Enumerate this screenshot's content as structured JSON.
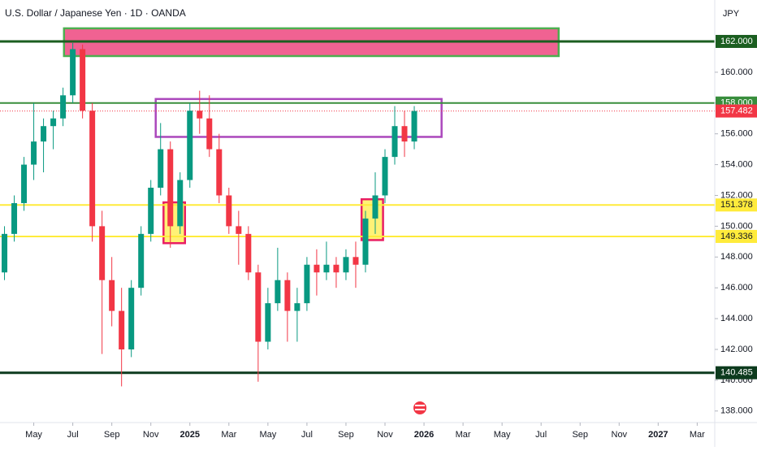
{
  "chart_data": {
    "type": "candlestick",
    "title": "U.S. Dollar / Japanese Yen · 1D · OANDA",
    "axis_label": "JPY",
    "up_color": "#089981",
    "down_color": "#f23645",
    "x": [
      3.5,
      4,
      4.5,
      5,
      5.5,
      6,
      6.5,
      7,
      7.5,
      8,
      8.5,
      9,
      9.5,
      10,
      10.5,
      11,
      11.5,
      12,
      12.5,
      13,
      13.5,
      14,
      14.5,
      15,
      15.5,
      16,
      16.5,
      17,
      17.5,
      18,
      18.5,
      19,
      19.5,
      20,
      20.5,
      21,
      21.5,
      22,
      22.5,
      23,
      23.5,
      24,
      24.5
    ],
    "open": [
      147,
      149.5,
      151.5,
      154,
      155.5,
      156.5,
      157,
      158.5,
      161.5,
      157.5,
      150,
      146.5,
      144.5,
      142,
      146,
      149.5,
      152.5,
      155,
      150,
      153,
      157.5,
      157,
      155,
      152,
      150,
      149.5,
      147,
      142.5,
      145,
      146.5,
      144.5,
      145,
      147.5,
      147,
      147.5,
      147,
      148,
      147.5,
      150.5,
      152,
      154.5,
      156.5,
      155.5
    ],
    "high": [
      150,
      152,
      154.5,
      158,
      157,
      157.5,
      159,
      161.9,
      161.8,
      158,
      151,
      148,
      146,
      146.5,
      150,
      153,
      156.7,
      155.5,
      153.5,
      158,
      158.8,
      158.5,
      156,
      152.5,
      151,
      150,
      147.5,
      146,
      148.6,
      147,
      146,
      148,
      148.5,
      149,
      148,
      148.5,
      149,
      151,
      153.5,
      155,
      157.8,
      157.5,
      157.8
    ],
    "low": [
      146.5,
      149,
      151,
      153,
      153.5,
      155,
      156.5,
      158,
      157,
      149,
      141.7,
      143.5,
      139.6,
      141.5,
      145.5,
      149,
      152,
      148.6,
      149.5,
      152.5,
      156,
      154.5,
      151.5,
      149.5,
      147.5,
      146.5,
      139.9,
      142,
      144.5,
      142.5,
      142.5,
      144.5,
      145.5,
      146.5,
      146,
      146.5,
      146,
      147,
      149.5,
      151.5,
      154,
      154.5,
      155
    ],
    "close": [
      149.5,
      151.5,
      154,
      155.5,
      156.5,
      157,
      158.5,
      161.5,
      157.5,
      150,
      146.5,
      144.5,
      142,
      146,
      149.5,
      152.5,
      155,
      150,
      153,
      157.5,
      157,
      155,
      152,
      150,
      149.5,
      147,
      142.5,
      145,
      146.5,
      144.5,
      145,
      147.5,
      147,
      147.5,
      147,
      148,
      147.5,
      150.5,
      152,
      154.5,
      156.5,
      155.5,
      157.482
    ],
    "xlim": [
      3.27,
      39.9
    ],
    "ylim": [
      137.25,
      164.69
    ],
    "xticks": [
      {
        "value": 5,
        "label": "May"
      },
      {
        "value": 7,
        "label": "Jul"
      },
      {
        "value": 9,
        "label": "Sep"
      },
      {
        "value": 11,
        "label": "Nov"
      },
      {
        "value": 13,
        "label": "2025"
      },
      {
        "value": 15,
        "label": "Mar"
      },
      {
        "value": 17,
        "label": "May"
      },
      {
        "value": 19,
        "label": "Jul"
      },
      {
        "value": 21,
        "label": "Sep"
      },
      {
        "value": 23,
        "label": "Nov"
      },
      {
        "value": 25,
        "label": "2026"
      },
      {
        "value": 27,
        "label": "Mar"
      },
      {
        "value": 29,
        "label": "May"
      },
      {
        "value": 31,
        "label": "Jul"
      },
      {
        "value": 33,
        "label": "Sep"
      },
      {
        "value": 35,
        "label": "Nov"
      },
      {
        "value": 37,
        "label": "2027"
      },
      {
        "value": 39,
        "label": "Mar"
      }
    ],
    "yticks": [
      {
        "value": 138,
        "label": "138.000"
      },
      {
        "value": 140,
        "label": "140.000"
      },
      {
        "value": 142,
        "label": "142.000"
      },
      {
        "value": 144,
        "label": "144.000"
      },
      {
        "value": 146,
        "label": "146.000"
      },
      {
        "value": 148,
        "label": "148.000"
      },
      {
        "value": 150,
        "label": "150.000"
      },
      {
        "value": 152,
        "label": "152.000"
      },
      {
        "value": 154,
        "label": "154.000"
      },
      {
        "value": 156,
        "label": "156.000"
      },
      {
        "value": 158,
        "label": "158.000"
      },
      {
        "value": 160,
        "label": "160.000"
      }
    ],
    "zones": [
      {
        "x": [
          6.55,
          31.9
        ],
        "y": [
          161.05,
          162.85
        ],
        "fill": "#f06292",
        "stroke": "#4caf50"
      },
      {
        "x": [
          11.25,
          25.9
        ],
        "y": [
          155.8,
          158.26
        ],
        "fill": "none",
        "stroke": "#ab47bc"
      },
      {
        "x": [
          11.65,
          12.75
        ],
        "y": [
          148.9,
          151.55
        ],
        "fill": "#fff176",
        "stroke": "#e91e63"
      },
      {
        "x": [
          21.8,
          22.9
        ],
        "y": [
          149.1,
          151.75
        ],
        "fill": "#fff176",
        "stroke": "#e91e63"
      }
    ],
    "levels": [
      {
        "value": 162,
        "label": "162.000",
        "color": "#1b5e20",
        "width": 3
      },
      {
        "value": 158,
        "label": "158.000",
        "color": "#388e3c",
        "width": 2
      },
      {
        "value": 157.482,
        "label": "157.482",
        "color": "#f23645",
        "width": 1,
        "dotted": true
      },
      {
        "value": 151.378,
        "label": "151.378",
        "color": "#ffeb3b",
        "width": 2
      },
      {
        "value": 149.336,
        "label": "149.336",
        "color": "#ffeb3b",
        "width": 2
      },
      {
        "value": 140.485,
        "label": "140.485",
        "color": "#0d3b1e",
        "width": 3
      }
    ]
  }
}
